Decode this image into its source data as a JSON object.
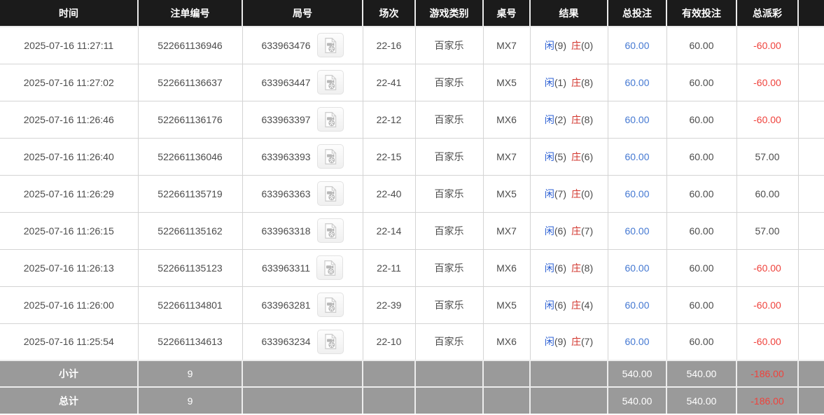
{
  "colors": {
    "header_bg": "#1b1b1b",
    "footer_bg": "#9a9a9a",
    "bet_blue": "#4579d2",
    "player_blue": "#2b5fd3",
    "banker_red": "#d2342c",
    "negative_red": "#ef423c",
    "body_text": "#4c4c4c"
  },
  "result_labels": {
    "player": "闲",
    "banker": "庄"
  },
  "icons": {
    "video_button": "video-file-icon"
  },
  "table": {
    "headers": [
      "时间",
      "注单编号",
      "局号",
      "场次",
      "游戏类别",
      "桌号",
      "结果",
      "总投注",
      "有效投注",
      "总派彩",
      ""
    ],
    "rows": [
      {
        "time": "2025-07-16 11:27:11",
        "bet_id": "522661136946",
        "round_id": "633963476",
        "session": "22-16",
        "game": "百家乐",
        "table_no": "MX7",
        "player_score": "9",
        "banker_score": "0",
        "total_bet": "60.00",
        "valid_bet": "60.00",
        "payout": "-60.00"
      },
      {
        "time": "2025-07-16 11:27:02",
        "bet_id": "522661136637",
        "round_id": "633963447",
        "session": "22-41",
        "game": "百家乐",
        "table_no": "MX5",
        "player_score": "1",
        "banker_score": "8",
        "total_bet": "60.00",
        "valid_bet": "60.00",
        "payout": "-60.00"
      },
      {
        "time": "2025-07-16 11:26:46",
        "bet_id": "522661136176",
        "round_id": "633963397",
        "session": "22-12",
        "game": "百家乐",
        "table_no": "MX6",
        "player_score": "2",
        "banker_score": "8",
        "total_bet": "60.00",
        "valid_bet": "60.00",
        "payout": "-60.00"
      },
      {
        "time": "2025-07-16 11:26:40",
        "bet_id": "522661136046",
        "round_id": "633963393",
        "session": "22-15",
        "game": "百家乐",
        "table_no": "MX7",
        "player_score": "5",
        "banker_score": "6",
        "total_bet": "60.00",
        "valid_bet": "60.00",
        "payout": "57.00"
      },
      {
        "time": "2025-07-16 11:26:29",
        "bet_id": "522661135719",
        "round_id": "633963363",
        "session": "22-40",
        "game": "百家乐",
        "table_no": "MX5",
        "player_score": "7",
        "banker_score": "0",
        "total_bet": "60.00",
        "valid_bet": "60.00",
        "payout": "60.00"
      },
      {
        "time": "2025-07-16 11:26:15",
        "bet_id": "522661135162",
        "round_id": "633963318",
        "session": "22-14",
        "game": "百家乐",
        "table_no": "MX7",
        "player_score": "6",
        "banker_score": "7",
        "total_bet": "60.00",
        "valid_bet": "60.00",
        "payout": "57.00"
      },
      {
        "time": "2025-07-16 11:26:13",
        "bet_id": "522661135123",
        "round_id": "633963311",
        "session": "22-11",
        "game": "百家乐",
        "table_no": "MX6",
        "player_score": "6",
        "banker_score": "8",
        "total_bet": "60.00",
        "valid_bet": "60.00",
        "payout": "-60.00"
      },
      {
        "time": "2025-07-16 11:26:00",
        "bet_id": "522661134801",
        "round_id": "633963281",
        "session": "22-39",
        "game": "百家乐",
        "table_no": "MX5",
        "player_score": "6",
        "banker_score": "4",
        "total_bet": "60.00",
        "valid_bet": "60.00",
        "payout": "-60.00"
      },
      {
        "time": "2025-07-16 11:25:54",
        "bet_id": "522661134613",
        "round_id": "633963234",
        "session": "22-10",
        "game": "百家乐",
        "table_no": "MX6",
        "player_score": "9",
        "banker_score": "7",
        "total_bet": "60.00",
        "valid_bet": "60.00",
        "payout": "-60.00"
      }
    ],
    "subtotal": {
      "label": "小计",
      "count": "9",
      "total_bet": "540.00",
      "valid_bet": "540.00",
      "payout": "-186.00"
    },
    "total": {
      "label": "总计",
      "count": "9",
      "total_bet": "540.00",
      "valid_bet": "540.00",
      "payout": "-186.00"
    }
  }
}
